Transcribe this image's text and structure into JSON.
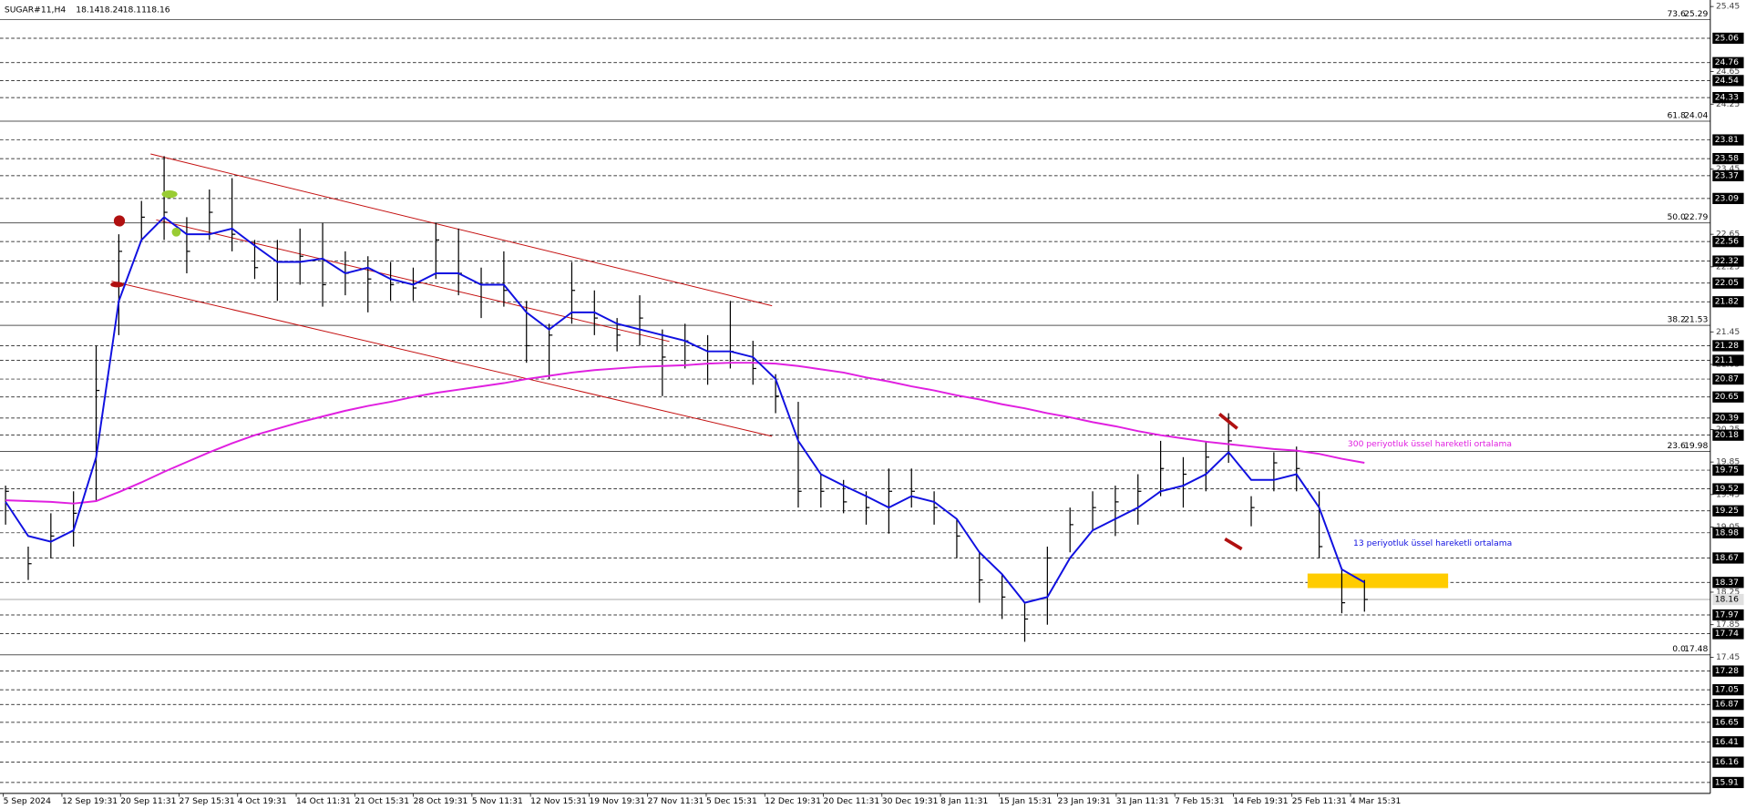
{
  "header": {
    "symbol": "SUGAR#11,H4",
    "ohlc": [
      18.14,
      18.24,
      18.11,
      18.16
    ]
  },
  "chart_data": {
    "type": "ohlc",
    "x_labels": [
      "5 Sep 2024",
      "12 Sep 19:31",
      "20 Sep 11:31",
      "27 Sep 15:31",
      "4 Oct 19:31",
      "14 Oct 11:31",
      "21 Oct 15:31",
      "28 Oct 19:31",
      "5 Nov 11:31",
      "12 Nov 15:31",
      "19 Nov 19:31",
      "27 Nov 11:31",
      "5 Dec 15:31",
      "12 Dec 19:31",
      "20 Dec 11:31",
      "30 Dec 19:31",
      "8 Jan 11:31",
      "15 Jan 15:31",
      "23 Jan 19:31",
      "31 Jan 11:31",
      "7 Feb 15:31",
      "14 Feb 19:31",
      "25 Feb 11:31",
      "4 Mar 15:31"
    ],
    "price": {
      "color": "#000000",
      "high": [
        19.56,
        18.81,
        19.22,
        19.49,
        21.28,
        22.65,
        23.06,
        23.61,
        22.86,
        23.2,
        23.34,
        22.58,
        22.58,
        22.72,
        22.79,
        22.44,
        22.38,
        22.31,
        22.24,
        22.79,
        22.72,
        22.24,
        22.44,
        21.83,
        21.55,
        22.31,
        21.96,
        21.62,
        21.9,
        21.48,
        21.55,
        21.41,
        21.83,
        21.34,
        20.93,
        20.59,
        19.7,
        19.63,
        19.49,
        19.77,
        19.77,
        19.49,
        19.15,
        18.74,
        18.47,
        18.12,
        18.81,
        19.29,
        19.49,
        19.56,
        19.7,
        20.11,
        19.91,
        20.11,
        20.45,
        19.43,
        19.97,
        20.04,
        19.49,
        18.53,
        18.4
      ],
      "low": [
        19.08,
        18.4,
        18.67,
        18.81,
        19.36,
        21.41,
        22.58,
        22.58,
        22.17,
        22.58,
        22.44,
        22.1,
        21.83,
        22.03,
        21.76,
        21.9,
        21.69,
        21.83,
        21.83,
        22.1,
        21.9,
        21.62,
        21.76,
        21.07,
        20.87,
        21.55,
        21.41,
        21.21,
        21.28,
        20.66,
        21.0,
        20.8,
        21.0,
        20.8,
        20.45,
        19.29,
        19.29,
        19.22,
        19.08,
        18.97,
        19.29,
        19.08,
        18.67,
        18.12,
        17.92,
        17.64,
        17.85,
        18.74,
        19.01,
        18.94,
        19.08,
        19.43,
        19.29,
        19.49,
        19.84,
        19.06,
        19.49,
        19.49,
        18.67,
        17.99,
        18.01
      ],
      "close": [
        19.49,
        18.6,
        18.94,
        19.22,
        20.73,
        22.44,
        22.86,
        22.92,
        22.44,
        22.92,
        22.65,
        22.24,
        22.31,
        22.38,
        22.03,
        22.17,
        22.1,
        22.03,
        21.99,
        22.58,
        22.17,
        22.03,
        21.96,
        21.28,
        21.41,
        21.96,
        21.62,
        21.41,
        21.62,
        21.14,
        21.34,
        21.21,
        21.21,
        21.0,
        20.66,
        19.49,
        19.49,
        19.36,
        19.29,
        19.49,
        19.49,
        19.29,
        18.94,
        18.4,
        18.19,
        17.92,
        18.67,
        19.08,
        19.29,
        19.36,
        19.49,
        19.77,
        19.7,
        19.91,
        20.11,
        19.29,
        19.84,
        19.77,
        18.81,
        18.12,
        18.16
      ]
    },
    "series": [
      {
        "name": "300 periyotluk üssel hareketli ortalama",
        "color": "#e020e0",
        "values": [
          19.38,
          19.37,
          19.36,
          19.34,
          19.37,
          19.48,
          19.6,
          19.73,
          19.85,
          19.97,
          20.08,
          20.18,
          20.26,
          20.34,
          20.41,
          20.48,
          20.54,
          20.59,
          20.65,
          20.7,
          20.74,
          20.78,
          20.82,
          20.87,
          20.91,
          20.95,
          20.98,
          21.0,
          21.02,
          21.03,
          21.04,
          21.06,
          21.07,
          21.07,
          21.06,
          21.03,
          20.99,
          20.95,
          20.89,
          20.84,
          20.78,
          20.73,
          20.67,
          20.62,
          20.56,
          20.51,
          20.45,
          20.4,
          20.34,
          20.29,
          20.23,
          20.18,
          20.14,
          20.1,
          20.07,
          20.04,
          20.01,
          19.99,
          19.95,
          19.89,
          19.84
        ]
      },
      {
        "name": "13 periyotluk üssel hareketli ortalama",
        "color": "#1010e0",
        "values": [
          19.36,
          18.94,
          18.87,
          19.01,
          19.91,
          21.83,
          22.58,
          22.86,
          22.65,
          22.65,
          22.72,
          22.51,
          22.31,
          22.31,
          22.35,
          22.17,
          22.24,
          22.1,
          22.03,
          22.17,
          22.17,
          22.03,
          22.03,
          21.69,
          21.48,
          21.69,
          21.69,
          21.55,
          21.48,
          21.41,
          21.34,
          21.21,
          21.21,
          21.14,
          20.87,
          20.11,
          19.7,
          19.56,
          19.43,
          19.29,
          19.43,
          19.36,
          19.15,
          18.74,
          18.47,
          18.12,
          18.19,
          18.67,
          19.01,
          19.15,
          19.29,
          19.49,
          19.56,
          19.7,
          19.97,
          19.63,
          19.63,
          19.7,
          19.29,
          18.53,
          18.37
        ]
      }
    ],
    "ylim": [
      15.79,
      25.53
    ],
    "yticks": [
      25.45,
      24.65,
      24.25,
      23.45,
      22.65,
      22.25,
      21.45,
      21.05,
      20.25,
      19.85,
      19.45,
      19.05,
      18.25,
      17.85,
      17.45
    ],
    "levels": [
      25.06,
      24.76,
      24.54,
      24.33,
      23.81,
      23.58,
      23.37,
      23.09,
      22.56,
      22.32,
      22.05,
      21.82,
      21.28,
      21.1,
      20.87,
      20.65,
      20.39,
      20.18,
      19.75,
      19.52,
      19.25,
      18.98,
      18.67,
      18.37,
      17.97,
      17.74,
      17.28,
      17.05,
      16.87,
      16.65,
      16.41,
      16.16,
      15.91
    ],
    "current_price": 18.16,
    "fibonacci": [
      {
        "ratio": "73.6",
        "value": 25.29
      },
      {
        "ratio": "61.8",
        "value": 24.04
      },
      {
        "ratio": "50.0",
        "value": 22.79
      },
      {
        "ratio": "38.2",
        "value": 21.53
      },
      {
        "ratio": "23.6",
        "value": 19.98
      },
      {
        "ratio": "0.0",
        "value": 17.48
      }
    ]
  }
}
